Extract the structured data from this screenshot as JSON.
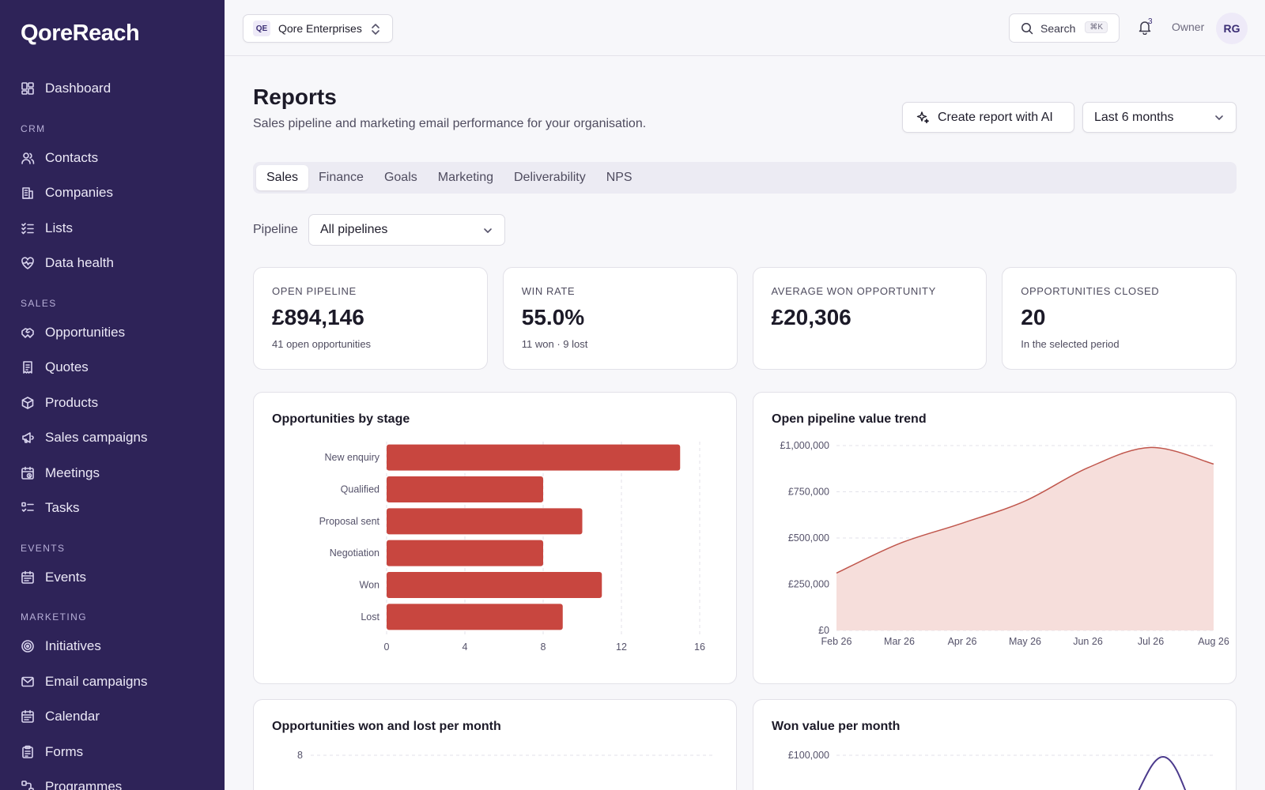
{
  "app": {
    "logo": "QoreReach"
  },
  "sidebar": {
    "top": [
      {
        "label": "Dashboard",
        "icon": "dashboard-icon"
      }
    ],
    "sections": [
      {
        "title": "CRM",
        "items": [
          {
            "label": "Contacts",
            "icon": "contacts-icon"
          },
          {
            "label": "Companies",
            "icon": "building-icon"
          },
          {
            "label": "Lists",
            "icon": "list-check-icon"
          },
          {
            "label": "Data health",
            "icon": "heart-pulse-icon"
          }
        ]
      },
      {
        "title": "SALES",
        "items": [
          {
            "label": "Opportunities",
            "icon": "handshake-icon"
          },
          {
            "label": "Quotes",
            "icon": "receipt-icon"
          },
          {
            "label": "Products",
            "icon": "box-icon"
          },
          {
            "label": "Sales campaigns",
            "icon": "megaphone-icon"
          },
          {
            "label": "Meetings",
            "icon": "calendar-clock-icon"
          },
          {
            "label": "Tasks",
            "icon": "tasks-icon"
          }
        ]
      },
      {
        "title": "EVENTS",
        "items": [
          {
            "label": "Events",
            "icon": "calendar-icon"
          }
        ]
      },
      {
        "title": "MARKETING",
        "items": [
          {
            "label": "Initiatives",
            "icon": "target-icon"
          },
          {
            "label": "Email campaigns",
            "icon": "mail-icon"
          },
          {
            "label": "Calendar",
            "icon": "calendar-icon"
          },
          {
            "label": "Forms",
            "icon": "clipboard-icon"
          },
          {
            "label": "Programmes",
            "icon": "workflow-icon"
          }
        ]
      }
    ]
  },
  "topbar": {
    "org_initials": "QE",
    "org_name": "Qore Enterprises",
    "search_label": "Search",
    "search_shortcut": "⌘K",
    "notification_count": "3",
    "role": "Owner",
    "avatar_initials": "RG"
  },
  "page": {
    "title": "Reports",
    "subtitle": "Sales pipeline and marketing email performance for your organisation.",
    "ai_button": "Create report with AI",
    "date_range": "Last 6 months",
    "tabs": [
      "Sales",
      "Finance",
      "Goals",
      "Marketing",
      "Deliverability",
      "NPS"
    ],
    "active_tab": "Sales",
    "filter_label": "Pipeline",
    "filter_value": "All pipelines"
  },
  "stats": [
    {
      "label": "OPEN PIPELINE",
      "value": "£894,146",
      "note": "41 open opportunities"
    },
    {
      "label": "WIN RATE",
      "value": "55.0%",
      "note": "11 won · 9 lost"
    },
    {
      "label": "AVERAGE WON OPPORTUNITY",
      "value": "£20,306",
      "note": ""
    },
    {
      "label": "OPPORTUNITIES CLOSED",
      "value": "20",
      "note": "In the selected period"
    }
  ],
  "colors": {
    "sidebar": "#2e2358",
    "bar": "#c8463f",
    "area_fill": "#f6dedb",
    "area_line": "#c0564c",
    "won_line": "#4b3a8c"
  },
  "chart_data": [
    {
      "type": "bar",
      "orientation": "horizontal",
      "title": "Opportunities by stage",
      "categories": [
        "New enquiry",
        "Qualified",
        "Proposal sent",
        "Negotiation",
        "Won",
        "Lost"
      ],
      "values": [
        15,
        8,
        10,
        8,
        11,
        9
      ],
      "xlim": [
        0,
        16
      ],
      "xticks": [
        "0",
        "4",
        "8",
        "12",
        "16"
      ]
    },
    {
      "type": "area",
      "title": "Open pipeline value trend",
      "x": [
        "Feb 26",
        "Mar 26",
        "Apr 26",
        "May 26",
        "Jun 26",
        "Jul 26",
        "Aug 26"
      ],
      "values": [
        310000,
        470000,
        580000,
        700000,
        880000,
        990000,
        900000
      ],
      "ylim": [
        0,
        1000000
      ],
      "yticks": [
        "£0",
        "£250,000",
        "£500,000",
        "£750,000",
        "£1,000,000"
      ]
    },
    {
      "type": "bar",
      "title": "Opportunities won and lost per month",
      "yticks_visible": [
        "8"
      ]
    },
    {
      "type": "line",
      "title": "Won value per month",
      "yticks_visible": [
        "£100,000"
      ]
    }
  ]
}
